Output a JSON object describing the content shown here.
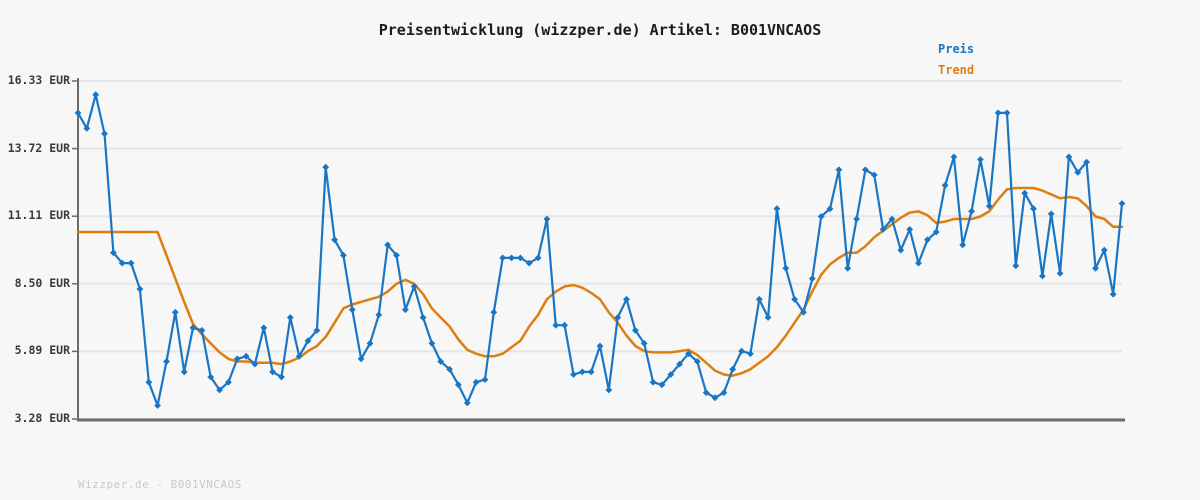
{
  "title": "Preisentwicklung (wizzper.de) Artikel: B001VNCAOS",
  "legend": {
    "price_label": "Preis",
    "trend_label": "Trend"
  },
  "watermark": "Wizzper.de - B001VNCAOS",
  "colors": {
    "price": "#1976c4",
    "trend": "#dd7e0e",
    "grid": "#e6e6e6",
    "axis": "#6b6b6b",
    "background": "#f7f7f7",
    "tick_text": "#3a3a3a",
    "title_text": "#1c1c1c",
    "watermark_text": "#c9c9c9"
  },
  "y_axis": {
    "unit": "EUR",
    "tick_labels": [
      "16.33 EUR",
      "13.72 EUR",
      "11.11 EUR",
      "8.50 EUR",
      "5.89 EUR",
      "3.28 EUR"
    ],
    "tick_values": [
      16.33,
      13.72,
      11.11,
      8.5,
      5.89,
      3.28
    ],
    "min": 3.28,
    "max": 16.33
  },
  "x_axis": {
    "tick_labels": "none"
  },
  "chart_data": {
    "type": "line",
    "title": "Preisentwicklung (wizzper.de) Artikel: B001VNCAOS",
    "ylabel": "EUR",
    "xlabel": "",
    "ylim": [
      3.28,
      16.33
    ],
    "grid": "horizontal",
    "legend_position": "top-right",
    "series": [
      {
        "name": "Preis",
        "color": "#1976c4",
        "marker": "diamond",
        "values": [
          15.1,
          14.5,
          15.8,
          14.3,
          9.7,
          9.3,
          9.3,
          8.3,
          4.7,
          3.8,
          5.5,
          7.4,
          5.1,
          6.8,
          6.7,
          4.9,
          4.4,
          4.7,
          5.6,
          5.7,
          5.4,
          6.8,
          5.1,
          4.9,
          7.2,
          5.7,
          6.3,
          6.7,
          13.0,
          10.2,
          9.6,
          7.5,
          5.6,
          6.2,
          7.3,
          10.0,
          9.6,
          7.5,
          8.4,
          7.2,
          6.2,
          5.5,
          5.2,
          4.6,
          3.9,
          4.7,
          4.8,
          7.4,
          9.5,
          9.5,
          9.5,
          9.3,
          9.5,
          11.0,
          6.9,
          6.9,
          5.0,
          5.1,
          5.1,
          6.1,
          4.4,
          7.2,
          7.9,
          6.7,
          6.2,
          4.7,
          4.6,
          5.0,
          5.4,
          5.8,
          5.5,
          4.3,
          4.1,
          4.3,
          5.2,
          5.9,
          5.8,
          7.9,
          7.2,
          11.4,
          9.1,
          7.9,
          7.4,
          8.7,
          11.1,
          11.4,
          12.9,
          9.1,
          11.0,
          12.9,
          12.7,
          10.6,
          11.0,
          9.8,
          10.6,
          9.3,
          10.2,
          10.5,
          12.3,
          13.4,
          10.0,
          11.3,
          13.3,
          11.5,
          15.1,
          15.1,
          9.2,
          12.0,
          11.4,
          8.8,
          11.2,
          8.9,
          13.4,
          12.8,
          13.2,
          9.1,
          9.8,
          8.1,
          11.6
        ]
      },
      {
        "name": "Trend",
        "color": "#dd7e0e",
        "marker": "none",
        "values": [
          10.5,
          10.5,
          10.5,
          10.5,
          10.5,
          10.5,
          10.5,
          10.5,
          10.5,
          10.5,
          9.6,
          8.7,
          7.8,
          6.95,
          6.55,
          6.2,
          5.85,
          5.6,
          5.5,
          5.5,
          5.45,
          5.45,
          5.45,
          5.4,
          5.5,
          5.65,
          5.9,
          6.1,
          6.45,
          7.0,
          7.55,
          7.7,
          7.8,
          7.9,
          8.0,
          8.2,
          8.5,
          8.65,
          8.5,
          8.1,
          7.55,
          7.2,
          6.85,
          6.35,
          5.95,
          5.8,
          5.7,
          5.7,
          5.8,
          6.05,
          6.3,
          6.85,
          7.3,
          7.9,
          8.2,
          8.4,
          8.45,
          8.35,
          8.15,
          7.9,
          7.4,
          7.0,
          6.5,
          6.1,
          5.9,
          5.85,
          5.85,
          5.85,
          5.9,
          5.95,
          5.75,
          5.45,
          5.15,
          5.0,
          4.95,
          5.05,
          5.2,
          5.45,
          5.7,
          6.05,
          6.5,
          7.0,
          7.5,
          8.2,
          8.85,
          9.25,
          9.5,
          9.7,
          9.7,
          9.95,
          10.3,
          10.55,
          10.8,
          11.05,
          11.25,
          11.3,
          11.15,
          10.85,
          10.9,
          11.0,
          11.0,
          11.0,
          11.1,
          11.3,
          11.75,
          12.15,
          12.2,
          12.2,
          12.2,
          12.1,
          11.95,
          11.8,
          11.85,
          11.8,
          11.5,
          11.1,
          11.0,
          10.7,
          10.7
        ]
      }
    ]
  }
}
